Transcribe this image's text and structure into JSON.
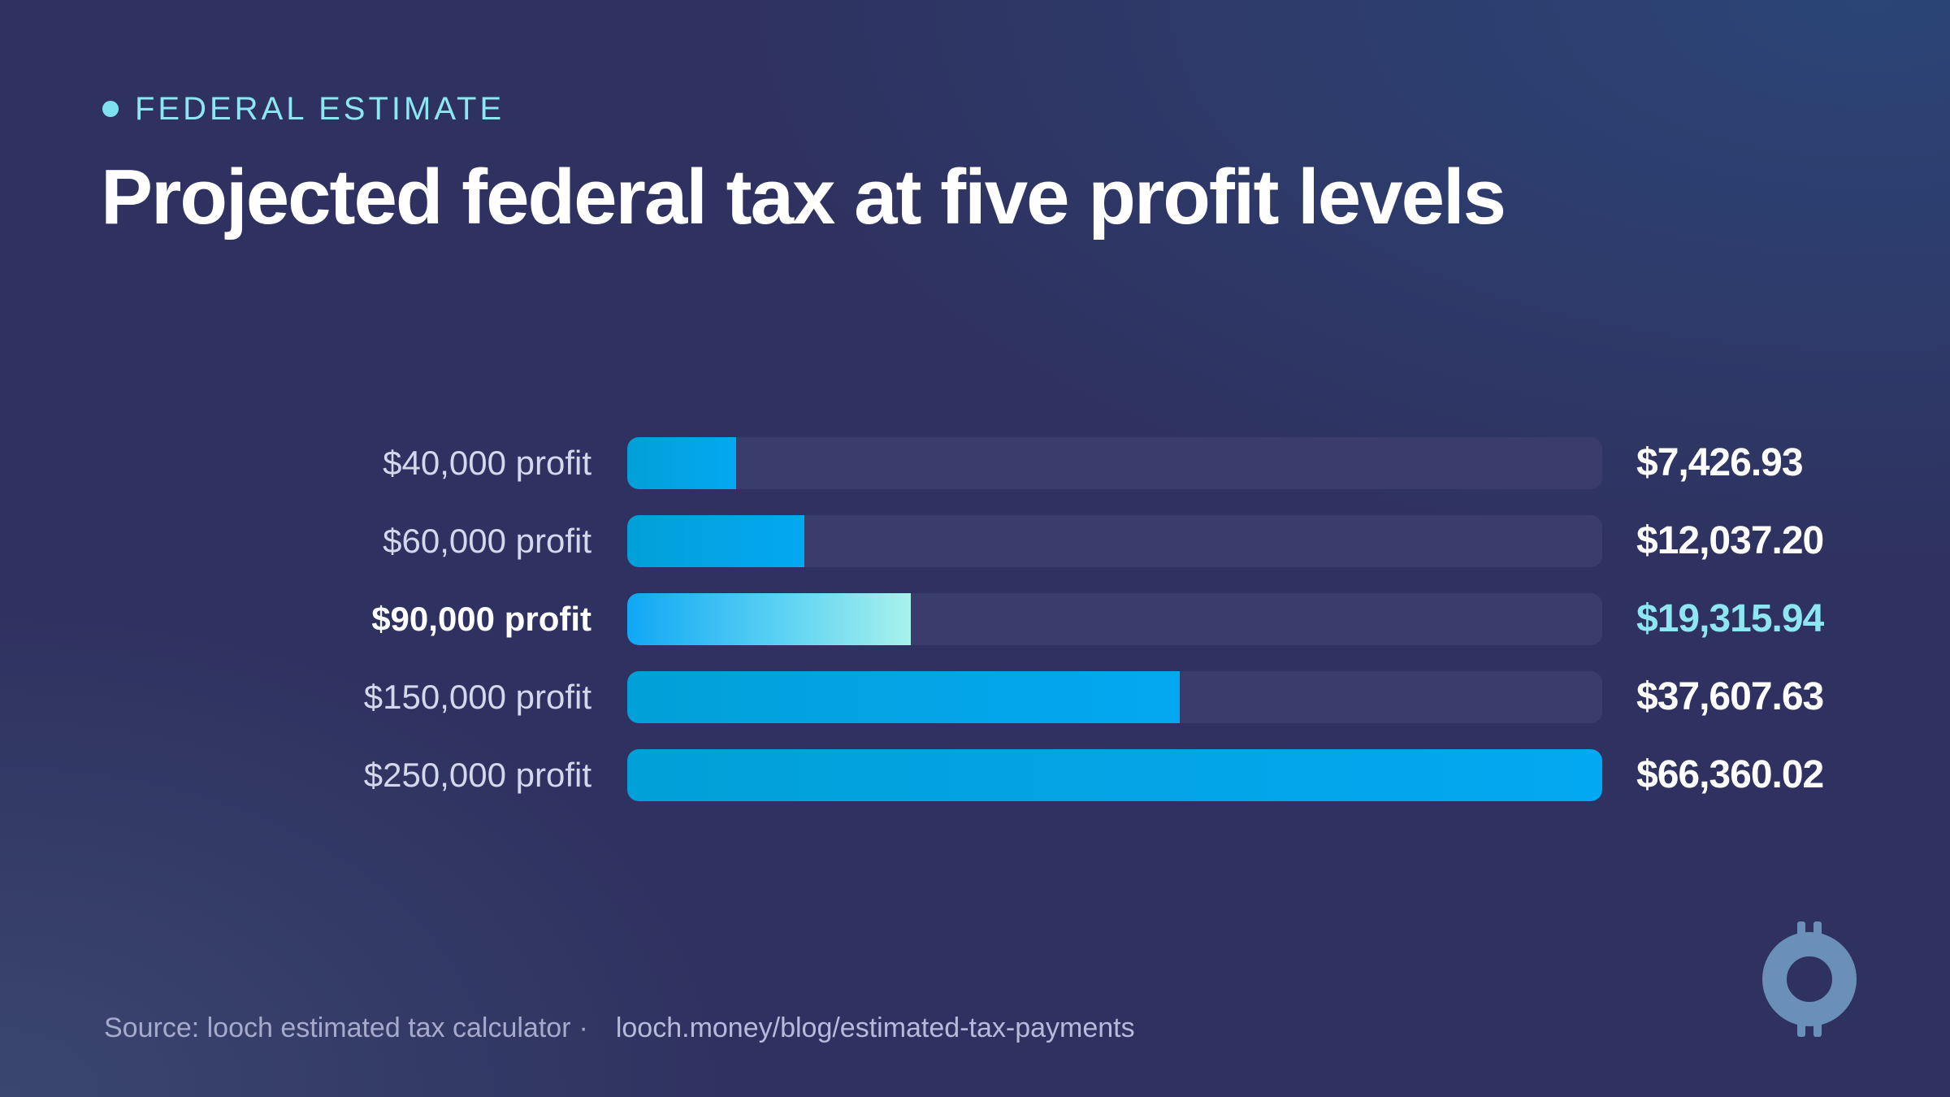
{
  "header": {
    "eyebrow": "FEDERAL ESTIMATE",
    "title": "Projected federal tax at five profit levels"
  },
  "chart_data": {
    "type": "bar",
    "orientation": "horizontal",
    "title": "Projected federal tax at five profit levels",
    "categories": [
      "$40,000 profit",
      "$60,000 profit",
      "$90,000 profit",
      "$150,000 profit",
      "$250,000 profit"
    ],
    "values": [
      7426.93,
      12037.2,
      19315.94,
      37607.63,
      66360.02
    ],
    "value_labels": [
      "$7,426.93",
      "$12,037.20",
      "$19,315.94",
      "$37,607.63",
      "$66,360.02"
    ],
    "highlight_index": 2,
    "xlim": [
      0,
      66360.02
    ],
    "grid": false,
    "legend": "none",
    "colors": {
      "bar": "#03a8f2",
      "highlight_start": "#10a7f5",
      "highlight_end": "#a8f2ec",
      "track": "#3a3d6c",
      "highlight_text": "#8ee6f3"
    }
  },
  "footer": {
    "source": "Source: looch estimated tax calculator",
    "separator": "·",
    "url": "looch.money/blog/estimated-tax-payments"
  },
  "logo": {
    "icon": "looch-coin-logo-icon"
  }
}
